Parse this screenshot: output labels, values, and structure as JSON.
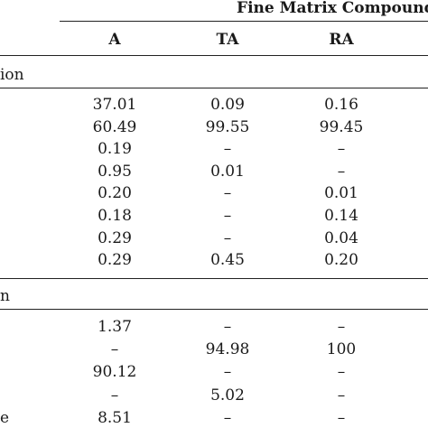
{
  "table": {
    "group_header": "Fine Matrix Compound",
    "columns": [
      "A",
      "TA",
      "RA"
    ],
    "sections": [
      {
        "label": "ion",
        "rows": [
          [
            "37.01",
            "0.09",
            "0.16"
          ],
          [
            "60.49",
            "99.55",
            "99.45"
          ],
          [
            "0.19",
            "–",
            "–"
          ],
          [
            "0.95",
            "0.01",
            "–"
          ],
          [
            "0.20",
            "–",
            "0.01"
          ],
          [
            "0.18",
            "–",
            "0.14"
          ],
          [
            "0.29",
            "–",
            "0.04"
          ],
          [
            "0.29",
            "0.45",
            "0.20"
          ]
        ]
      },
      {
        "label": "n",
        "rows": [
          [
            "1.37",
            "–",
            "–"
          ],
          [
            "–",
            "94.98",
            "100"
          ],
          [
            "90.12",
            "–",
            "–"
          ],
          [
            "–",
            "5.02",
            "–"
          ],
          [
            "8.51",
            "–",
            "–"
          ]
        ],
        "last_row_label": "e"
      }
    ]
  }
}
